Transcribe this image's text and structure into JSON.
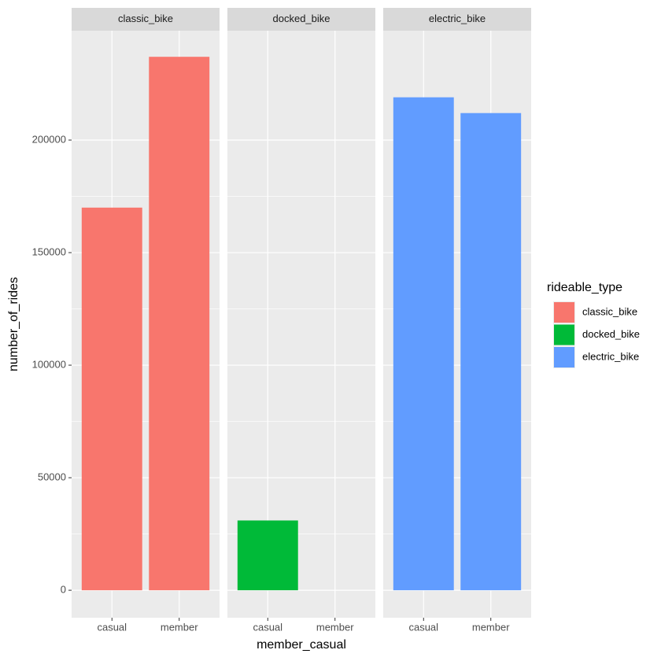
{
  "chart_data": {
    "type": "bar",
    "xlabel": "member_casual",
    "ylabel": "number_of_rides",
    "legend_title": "rideable_type",
    "categories": [
      "casual",
      "member"
    ],
    "series": [
      {
        "name": "classic_bike",
        "color": "#F8766D",
        "values": [
          170000,
          237000
        ]
      },
      {
        "name": "docked_bike",
        "color": "#00BA38",
        "values": [
          31000,
          null
        ]
      },
      {
        "name": "electric_bike",
        "color": "#619CFF",
        "values": [
          219000,
          212000
        ]
      }
    ],
    "ylim": [
      -12200,
      248600
    ],
    "yticks": [
      0,
      50000,
      100000,
      150000,
      200000
    ],
    "grid": true
  }
}
